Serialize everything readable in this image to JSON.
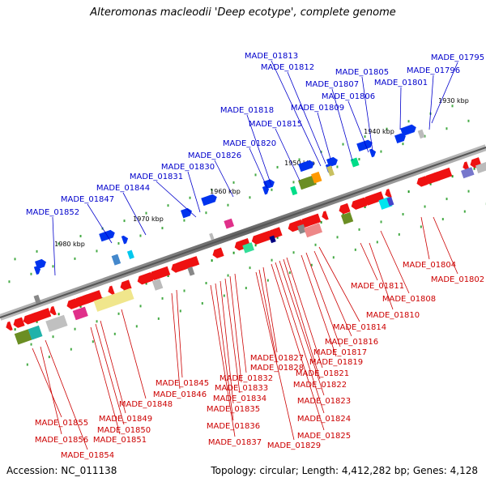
{
  "title": "Alteromonas macleodii 'Deep ecotype', complete genome",
  "footer": {
    "accession": "Accession: NC_011138",
    "topology": "Topology: circular; Length: 4,412,282 bp; Genes: 4,128"
  },
  "colors": {
    "upper_label": "#0000cc",
    "lower_label": "#cc0000",
    "forward_gene": "#0033ee",
    "reverse_gene": "#ee1111",
    "backbone": "#888888",
    "tick": "#229922"
  },
  "scale_labels": [
    "1930 kbp",
    "1940 kbp",
    "1950 kbp",
    "1960 kbp",
    "1970 kbp",
    "1980 kbp"
  ],
  "upper_genes": [
    "MADE_01795",
    "MADE_01796",
    "MADE_01801",
    "MADE_01805",
    "MADE_01806",
    "MADE_01807",
    "MADE_01809",
    "MADE_01812",
    "MADE_01813",
    "MADE_01815",
    "MADE_01818",
    "MADE_01820",
    "MADE_01826",
    "MADE_01830",
    "MADE_01831",
    "MADE_01844",
    "MADE_01847",
    "MADE_01852"
  ],
  "lower_genes": [
    "MADE_01802",
    "MADE_01804",
    "MADE_01808",
    "MADE_01810",
    "MADE_01811",
    "MADE_01814",
    "MADE_01816",
    "MADE_01817",
    "MADE_01819",
    "MADE_01821",
    "MADE_01822",
    "MADE_01823",
    "MADE_01824",
    "MADE_01825",
    "MADE_01827",
    "MADE_01828",
    "MADE_01829",
    "MADE_01832",
    "MADE_01833",
    "MADE_01834",
    "MADE_01835",
    "MADE_01836",
    "MADE_01837",
    "MADE_01845",
    "MADE_01846",
    "MADE_01848",
    "MADE_01849",
    "MADE_01850",
    "MADE_01851",
    "MADE_01854",
    "MADE_01855",
    "MADE_01856"
  ]
}
